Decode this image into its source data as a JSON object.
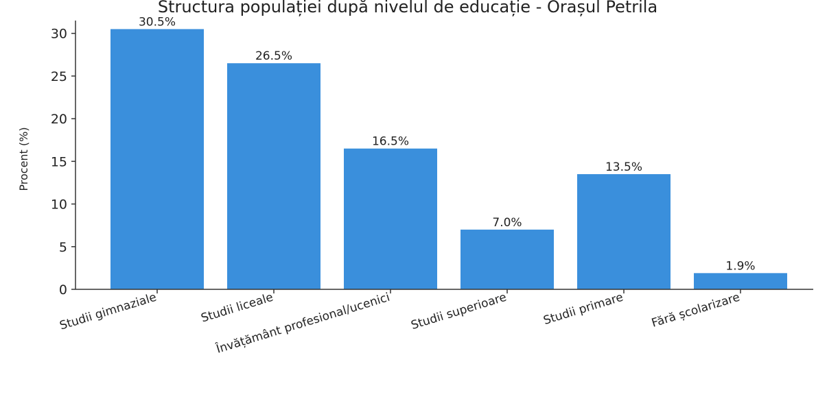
{
  "chart_data": {
    "type": "bar",
    "title": "Structura populației după nivelul de educație - Orașul Petrila",
    "xlabel": "",
    "ylabel": "Procent (%)",
    "categories": [
      "Studii gimnaziale",
      "Studii liceale",
      "Învățământ profesional/ucenici",
      "Studii superioare",
      "Studii primare",
      "Fără școlarizare"
    ],
    "values": [
      30.5,
      26.5,
      16.5,
      7.0,
      13.5,
      1.9
    ],
    "value_labels": [
      "30.5%",
      "26.5%",
      "16.5%",
      "7.0%",
      "13.5%",
      "1.9%"
    ],
    "ylim": [
      0,
      31.5
    ],
    "yticks": [
      0,
      5,
      10,
      15,
      20,
      25,
      30
    ],
    "grid": false,
    "colors": {
      "bar": "#3a8fdc",
      "axis": "#333333"
    }
  }
}
